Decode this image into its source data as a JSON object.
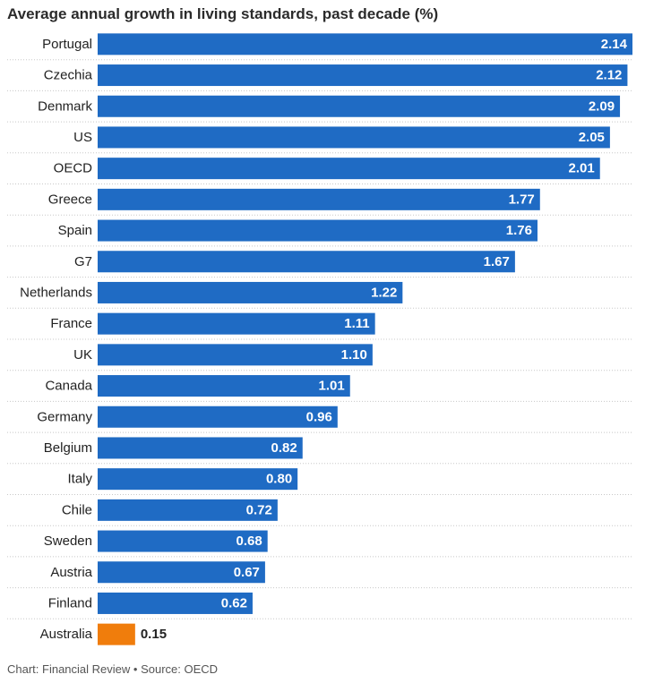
{
  "colors": {
    "bar": "#1f6bc4",
    "highlight": "#f07d0c",
    "row_divider": "#c8c8c8",
    "value_on_bar": "#ffffff",
    "value_outside": "#222222"
  },
  "footer": {
    "chart_credit": "Chart: Financial Review",
    "separator": "•",
    "source": "Source: OECD"
  },
  "chart_data": {
    "type": "bar",
    "orientation": "horizontal",
    "title": "Average annual growth in living standards, past decade (%)",
    "xlabel": "",
    "ylabel": "",
    "xlim": [
      0,
      2.14
    ],
    "grid": false,
    "legend": "none",
    "highlight": "Australia",
    "categories": [
      "Portugal",
      "Czechia",
      "Denmark",
      "US",
      "OECD",
      "Greece",
      "Spain",
      "G7",
      "Netherlands",
      "France",
      "UK",
      "Canada",
      "Germany",
      "Belgium",
      "Italy",
      "Chile",
      "Sweden",
      "Austria",
      "Finland",
      "Australia"
    ],
    "value_labels": [
      "2.14",
      "2.12",
      "2.09",
      "2.05",
      "2.01",
      "1.77",
      "1.76",
      "1.67",
      "1.22",
      "1.11",
      "1.10",
      "1.01",
      "0.96",
      "0.82",
      "0.80",
      "0.72",
      "0.68",
      "0.67",
      "0.62",
      "0.15"
    ],
    "values": [
      2.14,
      2.12,
      2.09,
      2.05,
      2.01,
      1.77,
      1.76,
      1.67,
      1.22,
      1.11,
      1.1,
      1.01,
      0.96,
      0.82,
      0.8,
      0.72,
      0.68,
      0.67,
      0.62,
      0.15
    ]
  }
}
